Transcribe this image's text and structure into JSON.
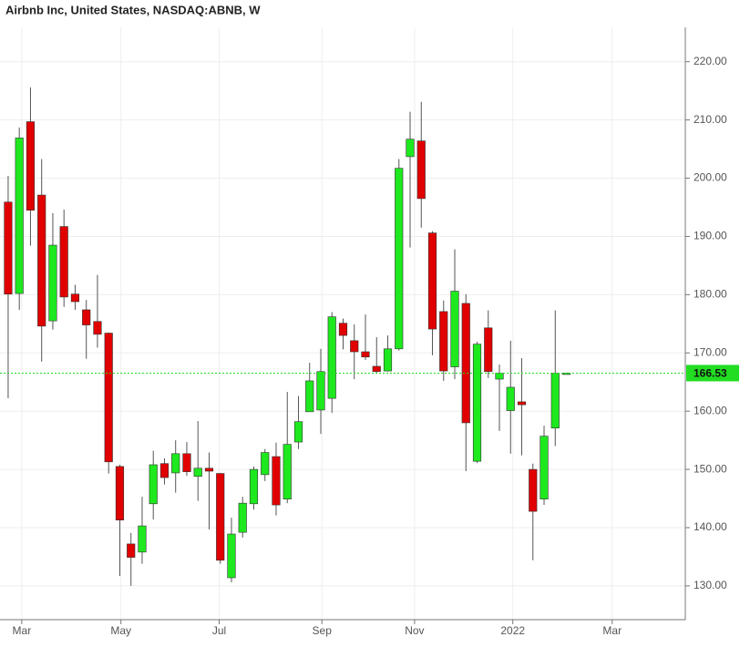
{
  "chart_data": {
    "type": "candlestick",
    "title": "Airbnb Inc, United States, NASDAQ:ABNB, W",
    "open": [
      195.9,
      180.2,
      209.7,
      197.1,
      175.5,
      191.7,
      180.1,
      177.4,
      175.4,
      173.4,
      150.5,
      137.2,
      135.8,
      144.1,
      151.0,
      149.4,
      152.7,
      148.8,
      150.2,
      149.3,
      131.4,
      139.2,
      144.1,
      149.1,
      152.2,
      144.9,
      154.7,
      159.9,
      160.2,
      162.2,
      175.1,
      172.1,
      170.2,
      167.7,
      166.9,
      170.7,
      203.7,
      206.4,
      190.6,
      177.1,
      167.6,
      178.5,
      151.4,
      174.3,
      165.5,
      160.1,
      161.6,
      150.0,
      144.9,
      157.1,
      166.53
    ],
    "high": [
      200.4,
      208.7,
      215.6,
      203.3,
      194.0,
      194.6,
      181.7,
      179.1,
      183.4,
      173.5,
      150.8,
      139.1,
      145.3,
      153.2,
      151.9,
      155.0,
      154.7,
      158.3,
      152.9,
      149.4,
      141.7,
      145.3,
      150.5,
      153.5,
      154.6,
      163.3,
      162.6,
      168.3,
      170.7,
      177.0,
      175.9,
      174.9,
      176.6,
      172.7,
      173.0,
      203.3,
      211.4,
      213.1,
      190.9,
      179.0,
      187.8,
      180.1,
      171.9,
      177.3,
      168.0,
      172.1,
      169.1,
      151.0,
      157.5,
      177.3,
      166.53
    ],
    "low": [
      162.2,
      177.4,
      188.4,
      168.5,
      174.0,
      177.9,
      177.4,
      169.0,
      170.9,
      149.3,
      131.7,
      130.0,
      133.8,
      141.4,
      147.4,
      146.0,
      148.9,
      144.6,
      139.7,
      133.8,
      130.6,
      138.3,
      143.1,
      148.0,
      142.1,
      144.2,
      153.5,
      159.9,
      156.1,
      159.7,
      170.6,
      165.5,
      168.8,
      166.5,
      166.8,
      170.4,
      188.1,
      191.5,
      169.6,
      165.2,
      165.5,
      149.7,
      151.1,
      165.7,
      156.6,
      152.7,
      152.4,
      134.4,
      143.9,
      154.0,
      166.53
    ],
    "close": [
      180.1,
      206.9,
      194.5,
      174.6,
      188.5,
      179.6,
      178.8,
      174.8,
      173.2,
      151.3,
      141.3,
      134.9,
      140.3,
      150.8,
      148.6,
      152.7,
      149.6,
      150.2,
      149.7,
      134.4,
      138.9,
      144.2,
      150.0,
      152.9,
      143.9,
      154.3,
      158.2,
      165.2,
      166.8,
      176.2,
      173.0,
      170.2,
      169.3,
      166.8,
      170.7,
      201.7,
      206.7,
      196.5,
      174.1,
      166.9,
      180.6,
      158.0,
      171.5,
      166.8,
      166.5,
      164.1,
      161.1,
      142.8,
      155.7,
      166.5,
      166.53
    ],
    "up_color": "#1ee81e",
    "down_color": "#e00000",
    "wick_color": "#555555",
    "last_price": 166.53,
    "last_price_color": "#22dd22",
    "xlim": [
      -0.73,
      60.65
    ],
    "xticks": [
      {
        "value": 1.22,
        "label": "Mar"
      },
      {
        "value": 10.1,
        "label": "May"
      },
      {
        "value": 18.9,
        "label": "Jul"
      },
      {
        "value": 28.1,
        "label": "Sep"
      },
      {
        "value": 36.4,
        "label": "Nov"
      },
      {
        "value": 45.2,
        "label": "2022"
      },
      {
        "value": 54.1,
        "label": "Mar"
      }
    ],
    "ylim": [
      124.2,
      225.9
    ],
    "yticks": [
      {
        "value": 130,
        "label": "130.00"
      },
      {
        "value": 140,
        "label": "140.00"
      },
      {
        "value": 150,
        "label": "150.00"
      },
      {
        "value": 160,
        "label": "160.00"
      },
      {
        "value": 170,
        "label": "170.00"
      },
      {
        "value": 180,
        "label": "180.00"
      },
      {
        "value": 190,
        "label": "190.00"
      },
      {
        "value": 200,
        "label": "200.00"
      },
      {
        "value": 210,
        "label": "210.00"
      },
      {
        "value": 220,
        "label": "220.00"
      }
    ],
    "grid": true
  }
}
